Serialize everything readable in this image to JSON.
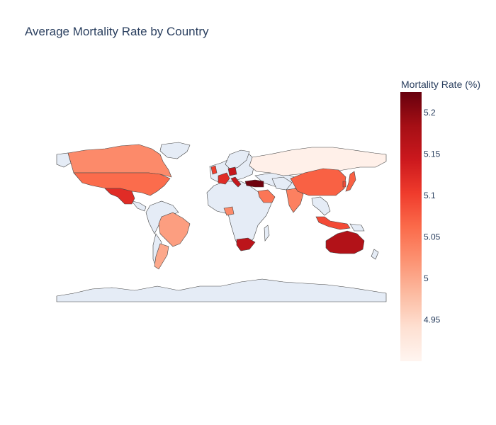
{
  "chart_data": {
    "type": "choropleth",
    "title": "Average Mortality Rate by Country",
    "colorbar": {
      "title": "Mortality Rate (%)",
      "range": [
        4.9,
        5.225
      ],
      "ticks": [
        4.95,
        5,
        5.05,
        5.1,
        5.15,
        5.2
      ],
      "colors": [
        "#fff5f0",
        "#fee0d2",
        "#fcbba1",
        "#fc9272",
        "#fb6a4a",
        "#ef3b2c",
        "#cb181d",
        "#a50f15",
        "#67000d"
      ]
    },
    "no_data_color": "#e5ecf6",
    "countries": [
      {
        "name": "Canada",
        "value": 5.03
      },
      {
        "name": "United States",
        "value": 5.06
      },
      {
        "name": "Mexico",
        "value": 5.12
      },
      {
        "name": "Brazil",
        "value": 5.01
      },
      {
        "name": "Argentina",
        "value": 5.0
      },
      {
        "name": "Russia",
        "value": 4.91
      },
      {
        "name": "United Kingdom",
        "value": 5.1
      },
      {
        "name": "France",
        "value": 5.12
      },
      {
        "name": "Germany",
        "value": 5.15
      },
      {
        "name": "Italy",
        "value": 5.15
      },
      {
        "name": "Turkey",
        "value": 5.22
      },
      {
        "name": "Saudi Arabia",
        "value": 5.05
      },
      {
        "name": "Nigeria",
        "value": 5.03
      },
      {
        "name": "South Africa",
        "value": 5.16
      },
      {
        "name": "India",
        "value": 5.04
      },
      {
        "name": "China",
        "value": 5.07
      },
      {
        "name": "South Korea",
        "value": 5.09
      },
      {
        "name": "Japan",
        "value": 5.07
      },
      {
        "name": "Indonesia",
        "value": 5.09
      },
      {
        "name": "Australia",
        "value": 5.17
      }
    ]
  }
}
